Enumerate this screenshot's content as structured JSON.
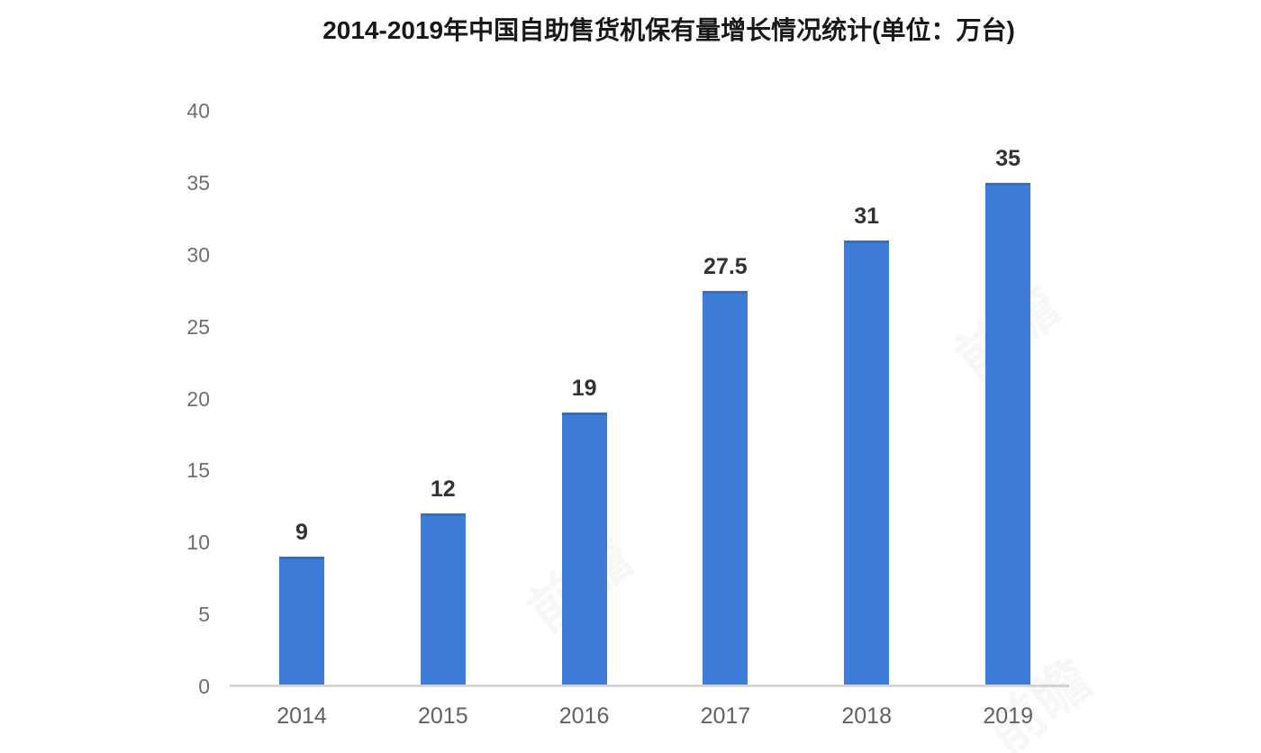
{
  "title": "2014-2019年中国自助售货机保有量增长情况统计(单位：万台)",
  "watermark_text": "前瞻",
  "colors": {
    "bar": "#3D7CD9",
    "axis_line": "#D6D6D6",
    "y_tick_label": "#6E6E6E",
    "x_tick_label": "#616161",
    "value_label": "#333333",
    "title": "#181818",
    "background": "#FFFFFF"
  },
  "chart_data": {
    "type": "bar",
    "title": "2014-2019年中国自助售货机保有量增长情况统计(单位：万台)",
    "categories": [
      "2014",
      "2015",
      "2016",
      "2017",
      "2018",
      "2019"
    ],
    "values": [
      9,
      12,
      19,
      27.5,
      31,
      35
    ],
    "value_labels": [
      "9",
      "12",
      "19",
      "27.5",
      "31",
      "35"
    ],
    "series_name": "自助售货机保有量",
    "unit": "万台",
    "xlabel": "",
    "ylabel": "",
    "ylim": [
      0,
      40
    ],
    "yticks": [
      0,
      5,
      10,
      15,
      20,
      25,
      30,
      35,
      40
    ],
    "grid": false,
    "legend": false
  }
}
